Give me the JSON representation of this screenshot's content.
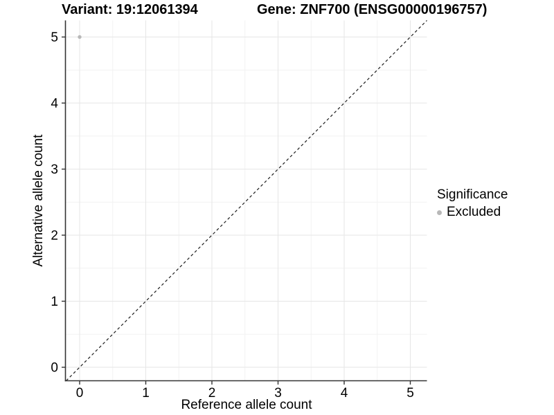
{
  "header": {
    "variant_title": "Variant: 19:12061394",
    "gene_title": "Gene: ZNF700 (ENSG00000196757)"
  },
  "chart_data": {
    "type": "scatter",
    "xlabel": "Reference allele count",
    "ylabel": "Alternative allele count",
    "x_ticks": [
      0,
      1,
      2,
      3,
      4,
      5
    ],
    "y_ticks": [
      0,
      1,
      2,
      3,
      4,
      5
    ],
    "xlim": [
      -0.21,
      5.25
    ],
    "ylim": [
      -0.2,
      5.25
    ],
    "grid": {
      "major": true,
      "minor": true,
      "minor_x": [
        0.5,
        1.5,
        2.5,
        3.5,
        4.5
      ],
      "minor_y": [
        0.5,
        1.5,
        2.5,
        3.5,
        4.5
      ]
    },
    "points": [
      {
        "x": 0,
        "y": 5,
        "significance": "Excluded"
      }
    ],
    "abline": {
      "slope": 1,
      "intercept": 0,
      "style": "dashed"
    },
    "legend": {
      "title": "Significance",
      "position": "right",
      "items": [
        {
          "label": "Excluded",
          "color": "#b8b8b8"
        }
      ]
    },
    "colors": {
      "point": "#b8b8b8",
      "grid_major": "#e6e6e6",
      "grid_minor": "#f2f2f2",
      "axis_line": "#333333",
      "tick_text": "#000000",
      "identity_line": "#1a1a1a",
      "background": "#ffffff"
    }
  }
}
